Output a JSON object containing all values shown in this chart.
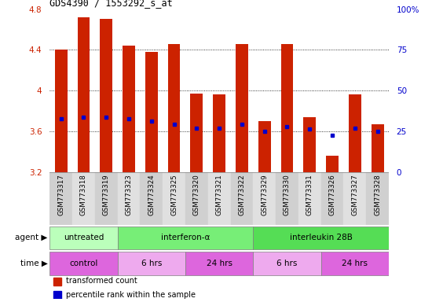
{
  "title": "GDS4390 / 1553292_s_at",
  "samples": [
    "GSM773317",
    "GSM773318",
    "GSM773319",
    "GSM773323",
    "GSM773324",
    "GSM773325",
    "GSM773320",
    "GSM773321",
    "GSM773322",
    "GSM773329",
    "GSM773330",
    "GSM773331",
    "GSM773326",
    "GSM773327",
    "GSM773328"
  ],
  "bar_tops": [
    4.4,
    4.72,
    4.7,
    4.44,
    4.38,
    4.46,
    3.97,
    3.96,
    4.46,
    3.7,
    4.46,
    3.74,
    3.36,
    3.96,
    3.67
  ],
  "bar_bottoms": [
    3.2,
    3.2,
    3.2,
    3.2,
    3.2,
    3.2,
    3.2,
    3.2,
    3.2,
    3.2,
    3.2,
    3.2,
    3.2,
    3.2,
    3.2
  ],
  "blue_vals": [
    3.72,
    3.74,
    3.74,
    3.72,
    3.7,
    3.67,
    3.63,
    3.63,
    3.67,
    3.6,
    3.65,
    3.62,
    3.56,
    3.63,
    3.6
  ],
  "bar_color": "#cc2200",
  "blue_color": "#0000cc",
  "ylim": [
    3.2,
    4.8
  ],
  "y2lim": [
    0,
    100
  ],
  "yticks": [
    3.2,
    3.6,
    4.0,
    4.4,
    4.8
  ],
  "y2ticks": [
    0,
    25,
    50,
    75,
    100
  ],
  "ytick_labels": [
    "3.2",
    "3.6",
    "4",
    "4.4",
    "4.8"
  ],
  "y2tick_labels": [
    "0",
    "25",
    "50",
    "75",
    "100%"
  ],
  "grid_yticks": [
    3.6,
    4.0,
    4.4
  ],
  "agent_groups": [
    {
      "label": "untreated",
      "start": 0,
      "end": 3,
      "color": "#bbffbb"
    },
    {
      "label": "interferon-α",
      "start": 3,
      "end": 9,
      "color": "#77ee77"
    },
    {
      "label": "interleukin 28B",
      "start": 9,
      "end": 15,
      "color": "#55dd55"
    }
  ],
  "time_groups": [
    {
      "label": "control",
      "start": 0,
      "end": 3,
      "color": "#dd66dd"
    },
    {
      "label": "6 hrs",
      "start": 3,
      "end": 6,
      "color": "#eeaaee"
    },
    {
      "label": "24 hrs",
      "start": 6,
      "end": 9,
      "color": "#dd66dd"
    },
    {
      "label": "6 hrs",
      "start": 9,
      "end": 12,
      "color": "#eeaaee"
    },
    {
      "label": "24 hrs",
      "start": 12,
      "end": 15,
      "color": "#dd66dd"
    }
  ],
  "legend_items": [
    {
      "label": "transformed count",
      "color": "#cc2200",
      "marker": "s"
    },
    {
      "label": "percentile rank within the sample",
      "color": "#0000cc",
      "marker": "s"
    }
  ]
}
